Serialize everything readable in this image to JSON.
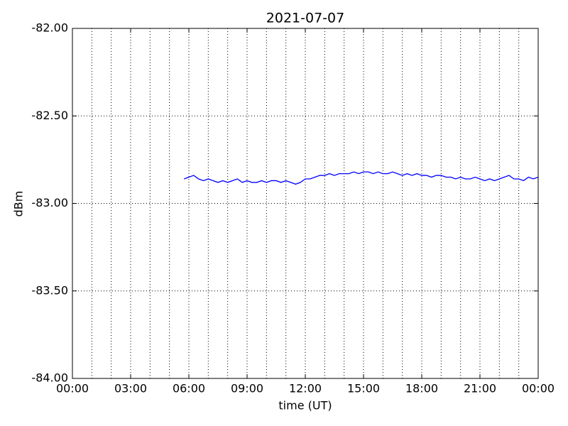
{
  "chart_data": {
    "type": "line",
    "title": "2021-07-07",
    "xlabel": "time (UT)",
    "ylabel": "dBm",
    "xlim": [
      0,
      24
    ],
    "xticks": [
      {
        "value": 0,
        "label": "00:00"
      },
      {
        "value": 3,
        "label": "03:00"
      },
      {
        "value": 6,
        "label": "06:00"
      },
      {
        "value": 9,
        "label": "09:00"
      },
      {
        "value": 12,
        "label": "12:00"
      },
      {
        "value": 15,
        "label": "15:00"
      },
      {
        "value": 18,
        "label": "18:00"
      },
      {
        "value": 21,
        "label": "21:00"
      },
      {
        "value": 24,
        "label": "00:00"
      }
    ],
    "xminor_grid": [
      1,
      2,
      4,
      5,
      7,
      8,
      10,
      11,
      13,
      14,
      16,
      17,
      19,
      20,
      22,
      23
    ],
    "ylim": [
      -84,
      -82
    ],
    "yticks": [
      {
        "value": -84,
        "label": "-84.00"
      },
      {
        "value": -83.5,
        "label": "-83.50"
      },
      {
        "value": -83,
        "label": "-83.00"
      },
      {
        "value": -82.5,
        "label": "-82.50"
      },
      {
        "value": -82,
        "label": "-82.00"
      }
    ],
    "grid": true,
    "x": [
      5.75,
      6,
      6.25,
      6.5,
      6.75,
      7,
      7.25,
      7.5,
      7.75,
      8,
      8.25,
      8.5,
      8.75,
      9,
      9.25,
      9.5,
      9.75,
      10,
      10.25,
      10.5,
      10.75,
      11,
      11.25,
      11.5,
      11.75,
      12,
      12.25,
      12.5,
      12.75,
      13,
      13.25,
      13.5,
      13.75,
      14,
      14.25,
      14.5,
      14.75,
      15,
      15.25,
      15.5,
      15.75,
      16,
      16.25,
      16.5,
      16.75,
      17,
      17.25,
      17.5,
      17.75,
      18,
      18.25,
      18.5,
      18.75,
      19,
      19.25,
      19.5,
      19.75,
      20,
      20.25,
      20.5,
      20.75,
      21,
      21.25,
      21.5,
      21.75,
      22,
      22.25,
      22.5,
      22.75,
      23,
      23.25,
      23.5,
      23.75,
      24
    ],
    "series": [
      {
        "color": "#0000ff",
        "values": [
          -82.86,
          -82.85,
          -82.84,
          -82.86,
          -82.87,
          -82.86,
          -82.87,
          -82.88,
          -82.87,
          -82.88,
          -82.87,
          -82.86,
          -82.88,
          -82.87,
          -82.88,
          -82.88,
          -82.87,
          -82.88,
          -82.87,
          -82.87,
          -82.88,
          -82.87,
          -82.88,
          -82.89,
          -82.88,
          -82.86,
          -82.86,
          -82.85,
          -82.84,
          -82.84,
          -82.83,
          -82.84,
          -82.83,
          -82.83,
          -82.83,
          -82.82,
          -82.83,
          -82.82,
          -82.82,
          -82.83,
          -82.82,
          -82.83,
          -82.83,
          -82.82,
          -82.83,
          -82.84,
          -82.83,
          -82.84,
          -82.83,
          -82.84,
          -82.84,
          -82.85,
          -82.84,
          -82.84,
          -82.85,
          -82.85,
          -82.86,
          -82.85,
          -82.86,
          -82.86,
          -82.85,
          -82.86,
          -82.87,
          -82.86,
          -82.87,
          -82.86,
          -82.85,
          -82.84,
          -82.86,
          -82.86,
          -82.87,
          -82.85,
          -82.86,
          -82.85
        ]
      }
    ]
  }
}
